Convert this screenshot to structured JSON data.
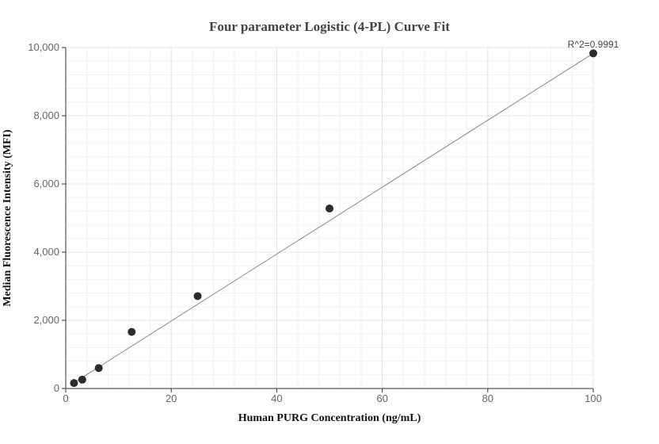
{
  "chart_data": {
    "type": "scatter",
    "title": "Four parameter Logistic (4-PL) Curve Fit",
    "xlabel": "Human PURG Concentration (ng/mL)",
    "ylabel": "Median Fluorescence Intensity (MFI)",
    "xlim": [
      0,
      100
    ],
    "ylim": [
      0,
      10000
    ],
    "x_ticks": [
      0,
      20,
      40,
      60,
      80,
      100
    ],
    "x_tick_labels": [
      "0",
      "20",
      "40",
      "60",
      "80",
      "100"
    ],
    "y_ticks": [
      0,
      2000,
      4000,
      6000,
      8000,
      10000
    ],
    "y_tick_labels": [
      "0",
      "2,000",
      "4,000",
      "6,000",
      "8,000",
      "10,000"
    ],
    "grid": true,
    "points": {
      "x": [
        1.5625,
        3.125,
        6.25,
        12.5,
        25,
        50,
        100
      ],
      "y": [
        160,
        260,
        600,
        1660,
        2710,
        5280,
        9830
      ]
    },
    "fit_line": {
      "x": [
        1.5625,
        100
      ],
      "y": [
        170,
        9830
      ]
    },
    "annotation": "R^2=0.9991",
    "colors": {
      "points": "#2b2b2b",
      "fit_line": "#888888",
      "grid_major": "#e3e3ee",
      "grid_minor": "#f0f0f6",
      "axis": "#333333"
    }
  }
}
